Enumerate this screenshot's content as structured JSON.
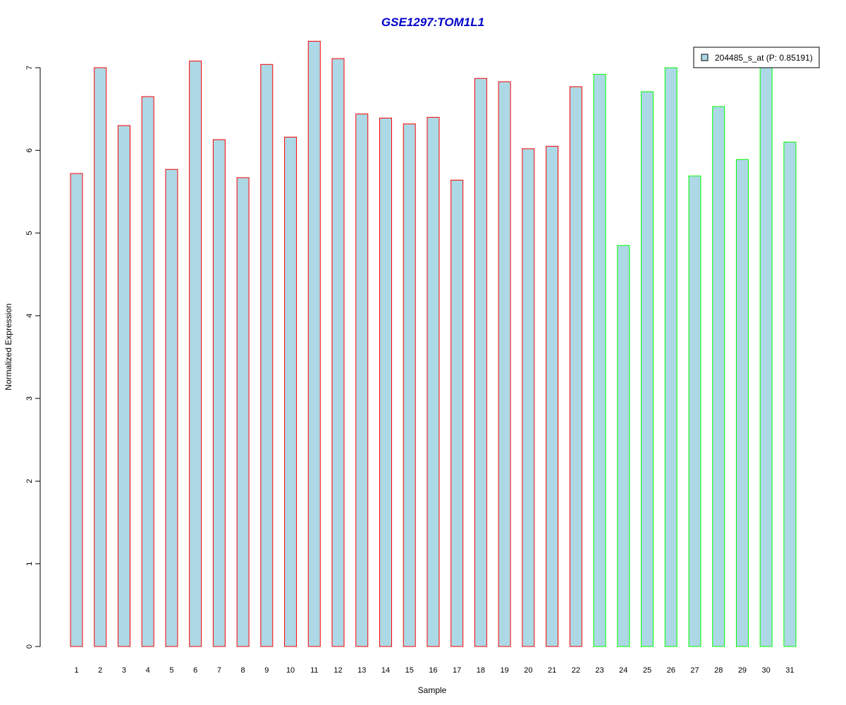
{
  "chart_data": {
    "type": "bar",
    "title": "GSE1297:TOM1L1",
    "xlabel": "Sample",
    "ylabel": "Normalized Expression",
    "categories": [
      "1",
      "2",
      "3",
      "4",
      "5",
      "6",
      "7",
      "8",
      "9",
      "10",
      "11",
      "12",
      "13",
      "14",
      "15",
      "16",
      "17",
      "18",
      "19",
      "20",
      "21",
      "22",
      "23",
      "24",
      "25",
      "26",
      "27",
      "28",
      "29",
      "30",
      "31"
    ],
    "series": [
      {
        "name": "204485_s_at (P: 0.85191)",
        "values": [
          5.72,
          7.0,
          6.3,
          6.65,
          5.77,
          7.08,
          6.13,
          5.67,
          7.04,
          6.16,
          7.32,
          7.11,
          6.44,
          6.39,
          6.32,
          6.4,
          5.64,
          6.87,
          6.83,
          6.02,
          6.05,
          6.77,
          6.92,
          4.85,
          6.71,
          7.0,
          5.69,
          6.53,
          5.89,
          7.09,
          6.1
        ]
      }
    ],
    "group": [
      "red",
      "red",
      "red",
      "red",
      "red",
      "red",
      "red",
      "red",
      "red",
      "red",
      "red",
      "red",
      "red",
      "red",
      "red",
      "red",
      "red",
      "red",
      "red",
      "red",
      "red",
      "red",
      "green",
      "green",
      "green",
      "green",
      "green",
      "green",
      "green",
      "green",
      "green"
    ],
    "yticks": [
      0,
      1,
      2,
      3,
      4,
      5,
      6,
      7
    ],
    "ylim": [
      0,
      7.32
    ],
    "grid": false,
    "legend_position": "top-right",
    "colors": {
      "title": "#0000CC",
      "bar_fill": "#ADD8E6",
      "border_red": "#FF0000",
      "border_green": "#00FF00",
      "axis": "#000000"
    }
  }
}
